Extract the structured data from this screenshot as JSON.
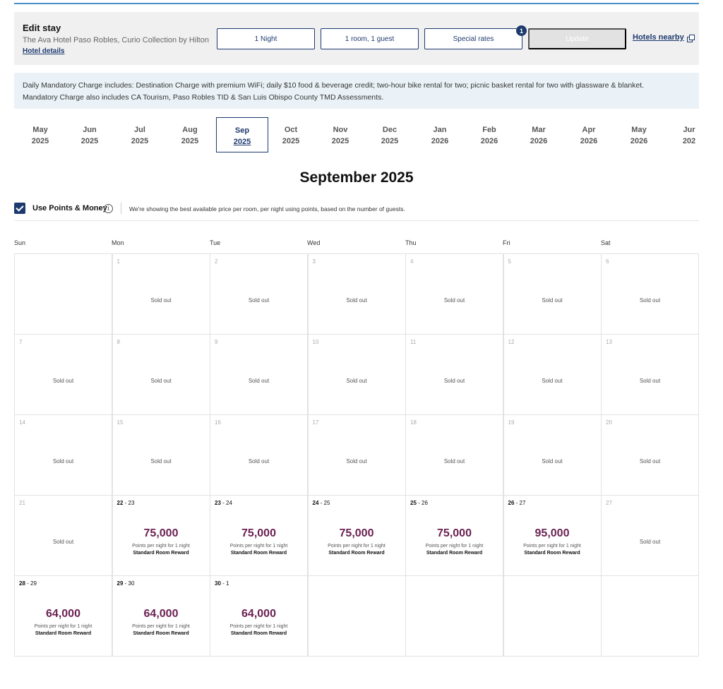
{
  "edit_stay": {
    "title": "Edit stay",
    "hotel_name": "The Ava Hotel Paso Robles, Curio Collection by Hilton",
    "hotel_details_link": "Hotel details",
    "nights_button": "1 Night",
    "rooms_button": "1 room, 1 guest",
    "rates_button": "Special rates",
    "rates_badge": "1",
    "update_button": "Update",
    "nearby_link": "Hotels nearby"
  },
  "info": {
    "line1": "Daily Mandatory Charge includes: Destination Charge with premium WiFi; daily $10 food & beverage credit; two-hour bike rental for two; picnic basket rental for two with glassware & blanket.",
    "line2": "Mandatory Charge also includes CA Tourism, Paso Robles TID & San Luis Obispo County TMD Assessments."
  },
  "months": [
    {
      "month": "May",
      "year": "2025"
    },
    {
      "month": "Jun",
      "year": "2025"
    },
    {
      "month": "Jul",
      "year": "2025"
    },
    {
      "month": "Aug",
      "year": "2025"
    },
    {
      "month": "Sep",
      "year": "2025",
      "active": true
    },
    {
      "month": "Oct",
      "year": "2025"
    },
    {
      "month": "Nov",
      "year": "2025"
    },
    {
      "month": "Dec",
      "year": "2025"
    },
    {
      "month": "Jan",
      "year": "2026"
    },
    {
      "month": "Feb",
      "year": "2026"
    },
    {
      "month": "Mar",
      "year": "2026"
    },
    {
      "month": "Apr",
      "year": "2026"
    },
    {
      "month": "May",
      "year": "2026"
    },
    {
      "month": "Jur",
      "year": "202"
    }
  ],
  "calendar_title": "September 2025",
  "points": {
    "label": "Use Points & Money",
    "info_glyph": "i",
    "note": "We're showing the best available price per room, per night using points, based on the number of guests."
  },
  "weekdays": [
    "Sun",
    "Mon",
    "Tue",
    "Wed",
    "Thu",
    "Fri",
    "Sat"
  ],
  "labels": {
    "sold_out": "Sold out",
    "per_night": "Points per night for 1 night",
    "reward": "Standard Room Reward",
    "range_sep": " - "
  },
  "weeks": [
    [
      {
        "empty": true
      },
      {
        "day": "1",
        "sold": true
      },
      {
        "day": "2",
        "sold": true
      },
      {
        "day": "3",
        "sold": true
      },
      {
        "day": "4",
        "sold": true
      },
      {
        "day": "5",
        "sold": true
      },
      {
        "day": "6",
        "sold": true
      }
    ],
    [
      {
        "day": "7",
        "sold": true
      },
      {
        "day": "8",
        "sold": true
      },
      {
        "day": "9",
        "sold": true
      },
      {
        "day": "10",
        "sold": true
      },
      {
        "day": "11",
        "sold": true
      },
      {
        "day": "12",
        "sold": true
      },
      {
        "day": "13",
        "sold": true
      }
    ],
    [
      {
        "day": "14",
        "sold": true
      },
      {
        "day": "15",
        "sold": true
      },
      {
        "day": "16",
        "sold": true
      },
      {
        "day": "17",
        "sold": true
      },
      {
        "day": "18",
        "sold": true
      },
      {
        "day": "19",
        "sold": true
      },
      {
        "day": "20",
        "sold": true
      }
    ],
    [
      {
        "day": "21",
        "sold": true
      },
      {
        "from": "22",
        "to": "23",
        "price": "75,000"
      },
      {
        "from": "23",
        "to": "24",
        "price": "75,000"
      },
      {
        "from": "24",
        "to": "25",
        "price": "75,000"
      },
      {
        "from": "25",
        "to": "26",
        "price": "75,000"
      },
      {
        "from": "26",
        "to": "27",
        "price": "95,000"
      },
      {
        "day": "27",
        "sold": true
      }
    ],
    [
      {
        "from": "28",
        "to": "29",
        "price": "64,000"
      },
      {
        "from": "29",
        "to": "30",
        "price": "64,000"
      },
      {
        "from": "30",
        "to": "1",
        "price": "64,000"
      },
      {
        "empty": true
      },
      {
        "empty": true
      },
      {
        "empty": true
      },
      {
        "empty": true
      }
    ]
  ]
}
